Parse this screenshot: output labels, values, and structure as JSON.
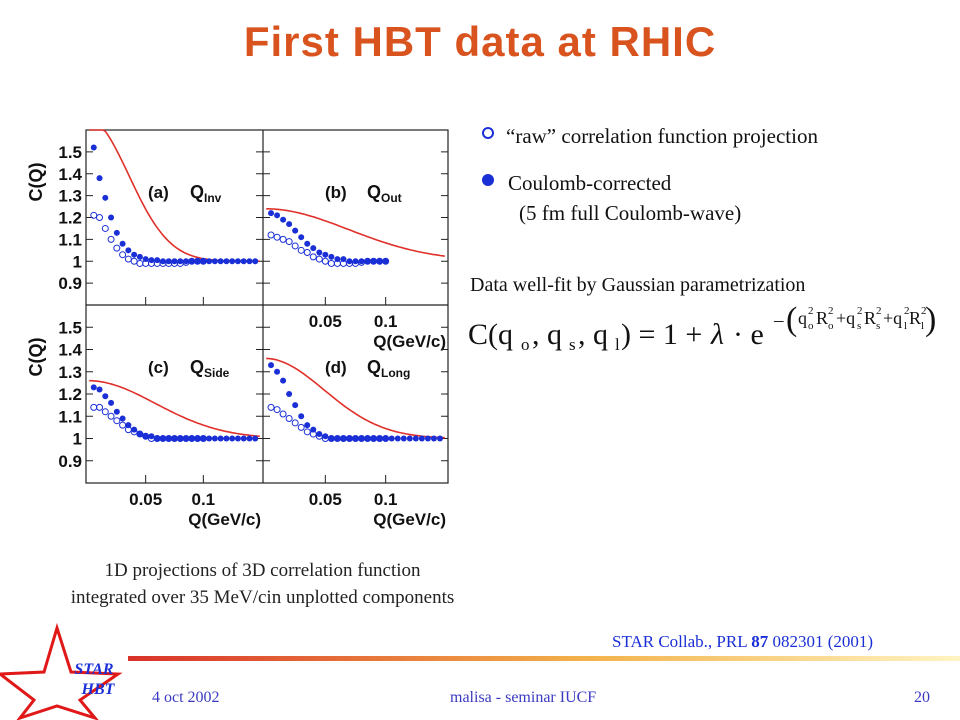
{
  "slide": {
    "title": "First HBT data at RHIC",
    "bullets": [
      {
        "marker": "open",
        "text": "“raw” correlation function projection"
      },
      {
        "marker": "filled",
        "text": "Coulomb-corrected"
      },
      {
        "marker": "",
        "text": "(5 fm full Coulomb-wave)"
      }
    ],
    "fit_note": "Data well-fit by Gaussian parametrization",
    "caption_line1": "1D projections of  3D correlation function",
    "caption_line2": "integrated over 35 MeV/cin unplotted components",
    "citation_prefix": "STAR Collab., PRL ",
    "citation_volume": "87",
    "citation_suffix": " 082301 (2001)",
    "footer_date": "4 oct 2002",
    "footer_center": "malisa - seminar IUCF",
    "footer_page": "20",
    "logo_text_line1": "STAR",
    "logo_text_line2": "HBT",
    "colors": {
      "title": "#d9531e",
      "markers": "#1a2fd6",
      "fit_curve": "#e0302a",
      "footer_text": "#3a3ac0"
    }
  },
  "chart_data": [
    {
      "type": "scatter",
      "panel": "(a)",
      "label": "Q",
      "label_sub": "Inv",
      "ylabel": "C(Q)",
      "ylim": [
        0.8,
        1.6
      ],
      "yticks": [
        "1.5",
        "1.4",
        "1.3",
        "1.2",
        "1.1",
        "1",
        "0.9"
      ],
      "xlim": [
        0.0,
        0.15
      ],
      "series": [
        {
          "marker": "filled",
          "x": [
            0.005,
            0.01,
            0.015,
            0.02,
            0.025,
            0.03,
            0.035,
            0.04,
            0.045,
            0.05,
            0.055,
            0.06,
            0.065,
            0.07,
            0.075,
            0.08,
            0.085,
            0.09,
            0.095,
            0.1,
            0.105,
            0.11,
            0.115,
            0.12,
            0.125,
            0.13,
            0.135,
            0.14,
            0.145
          ],
          "y": [
            1.52,
            1.38,
            1.29,
            1.2,
            1.13,
            1.08,
            1.05,
            1.03,
            1.02,
            1.01,
            1.005,
            1.005,
            1.0,
            1.0,
            1.0,
            1.0,
            1.0,
            1.0,
            1.0,
            1.0,
            1.0,
            1.0,
            1.0,
            1.0,
            1.0,
            1.0,
            1.0,
            1.0,
            1.0
          ]
        },
        {
          "marker": "open",
          "x": [
            0.005,
            0.01,
            0.015,
            0.02,
            0.025,
            0.03,
            0.035,
            0.04,
            0.045,
            0.05,
            0.055,
            0.06,
            0.065,
            0.07,
            0.075,
            0.08,
            0.085,
            0.09,
            0.095,
            0.1
          ],
          "y": [
            1.21,
            1.2,
            1.15,
            1.1,
            1.06,
            1.03,
            1.01,
            1.0,
            0.99,
            0.99,
            0.99,
            0.99,
            0.99,
            0.99,
            0.99,
            0.99,
            0.995,
            1.0,
            1.0,
            1.0
          ]
        }
      ],
      "fit": {
        "lambda": 0.65,
        "R": 2.15
      }
    },
    {
      "type": "scatter",
      "panel": "(b)",
      "label": "Q",
      "label_sub": "Out",
      "ylim": [
        0.8,
        1.6
      ],
      "xlim": [
        0.0,
        0.15
      ],
      "xticks": [
        "0.05",
        "0.1"
      ],
      "xlabel": "Q(GeV/c)",
      "series": [
        {
          "marker": "filled",
          "x": [
            0.005,
            0.01,
            0.015,
            0.02,
            0.025,
            0.03,
            0.035,
            0.04,
            0.045,
            0.05,
            0.055,
            0.06,
            0.065,
            0.07,
            0.075,
            0.08,
            0.085,
            0.09,
            0.095,
            0.1
          ],
          "y": [
            1.22,
            1.21,
            1.19,
            1.17,
            1.14,
            1.11,
            1.08,
            1.06,
            1.04,
            1.03,
            1.02,
            1.01,
            1.01,
            1.0,
            1.0,
            1.0,
            1.0,
            1.0,
            1.0,
            1.0
          ]
        },
        {
          "marker": "open",
          "x": [
            0.005,
            0.01,
            0.015,
            0.02,
            0.025,
            0.03,
            0.035,
            0.04,
            0.045,
            0.05,
            0.055,
            0.06,
            0.065,
            0.07,
            0.075,
            0.08,
            0.085,
            0.09,
            0.095,
            0.1
          ],
          "y": [
            1.12,
            1.11,
            1.1,
            1.09,
            1.07,
            1.05,
            1.04,
            1.02,
            1.01,
            1.0,
            0.99,
            0.99,
            0.99,
            0.99,
            0.99,
            0.995,
            1.0,
            1.0,
            1.0,
            1.0
          ]
        }
      ],
      "fit": {
        "lambda": 0.24,
        "R": 1.1
      }
    },
    {
      "type": "scatter",
      "panel": "(c)",
      "label": "Q",
      "label_sub": "Side",
      "ylabel": "C(Q)",
      "ylim": [
        0.8,
        1.6
      ],
      "yticks": [
        "1.5",
        "1.4",
        "1.3",
        "1.2",
        "1.1",
        "1",
        "0.9"
      ],
      "xlim": [
        0.0,
        0.15
      ],
      "xticks": [
        "0.05",
        "0.1"
      ],
      "xlabel": "Q(GeV/c)",
      "series": [
        {
          "marker": "filled",
          "x": [
            0.005,
            0.01,
            0.015,
            0.02,
            0.025,
            0.03,
            0.035,
            0.04,
            0.045,
            0.05,
            0.055,
            0.06,
            0.065,
            0.07,
            0.075,
            0.08,
            0.085,
            0.09,
            0.095,
            0.1,
            0.105,
            0.11,
            0.115,
            0.12,
            0.125,
            0.13,
            0.135,
            0.14,
            0.145
          ],
          "y": [
            1.23,
            1.22,
            1.19,
            1.16,
            1.12,
            1.09,
            1.06,
            1.04,
            1.02,
            1.01,
            1.01,
            1.0,
            1.0,
            1.0,
            1.0,
            1.0,
            1.0,
            1.0,
            1.0,
            1.0,
            1.0,
            1.0,
            1.0,
            1.0,
            1.0,
            1.0,
            1.0,
            1.0,
            1.0
          ]
        },
        {
          "marker": "open",
          "x": [
            0.005,
            0.01,
            0.015,
            0.02,
            0.025,
            0.03,
            0.035,
            0.04,
            0.045,
            0.05,
            0.055,
            0.06,
            0.065,
            0.07,
            0.075,
            0.08,
            0.085,
            0.09,
            0.095,
            0.1
          ],
          "y": [
            1.14,
            1.14,
            1.12,
            1.1,
            1.08,
            1.06,
            1.04,
            1.03,
            1.02,
            1.01,
            1.0,
            1.0,
            1.0,
            1.0,
            1.0,
            1.0,
            1.0,
            1.0,
            1.0,
            1.0
          ]
        }
      ],
      "fit": {
        "lambda": 0.26,
        "R": 1.3
      }
    },
    {
      "type": "scatter",
      "panel": "(d)",
      "label": "Q",
      "label_sub": "Long",
      "ylim": [
        0.8,
        1.6
      ],
      "xlim": [
        0.0,
        0.15
      ],
      "xticks": [
        "0.05",
        "0.1"
      ],
      "xlabel": "Q(GeV/c)",
      "series": [
        {
          "marker": "filled",
          "x": [
            0.005,
            0.01,
            0.015,
            0.02,
            0.025,
            0.03,
            0.035,
            0.04,
            0.045,
            0.05,
            0.055,
            0.06,
            0.065,
            0.07,
            0.075,
            0.08,
            0.085,
            0.09,
            0.095,
            0.1,
            0.105,
            0.11,
            0.115,
            0.12,
            0.125,
            0.13,
            0.135,
            0.14,
            0.145
          ],
          "y": [
            1.33,
            1.3,
            1.26,
            1.2,
            1.15,
            1.1,
            1.06,
            1.04,
            1.02,
            1.01,
            1.0,
            1.0,
            1.0,
            1.0,
            1.0,
            1.0,
            1.0,
            1.0,
            1.0,
            1.0,
            1.0,
            1.0,
            1.0,
            1.0,
            1.0,
            1.0,
            1.0,
            1.0,
            1.0
          ]
        },
        {
          "marker": "open",
          "x": [
            0.005,
            0.01,
            0.015,
            0.02,
            0.025,
            0.03,
            0.035,
            0.04,
            0.045,
            0.05,
            0.055,
            0.06,
            0.065,
            0.07,
            0.075,
            0.08,
            0.085,
            0.09,
            0.095,
            0.1
          ],
          "y": [
            1.14,
            1.13,
            1.11,
            1.09,
            1.07,
            1.05,
            1.03,
            1.02,
            1.01,
            1.0,
            1.0,
            1.0,
            1.0,
            1.0,
            1.0,
            1.0,
            1.0,
            1.0,
            1.0,
            1.0
          ]
        }
      ],
      "fit": {
        "lambda": 0.36,
        "R": 1.55
      }
    }
  ]
}
